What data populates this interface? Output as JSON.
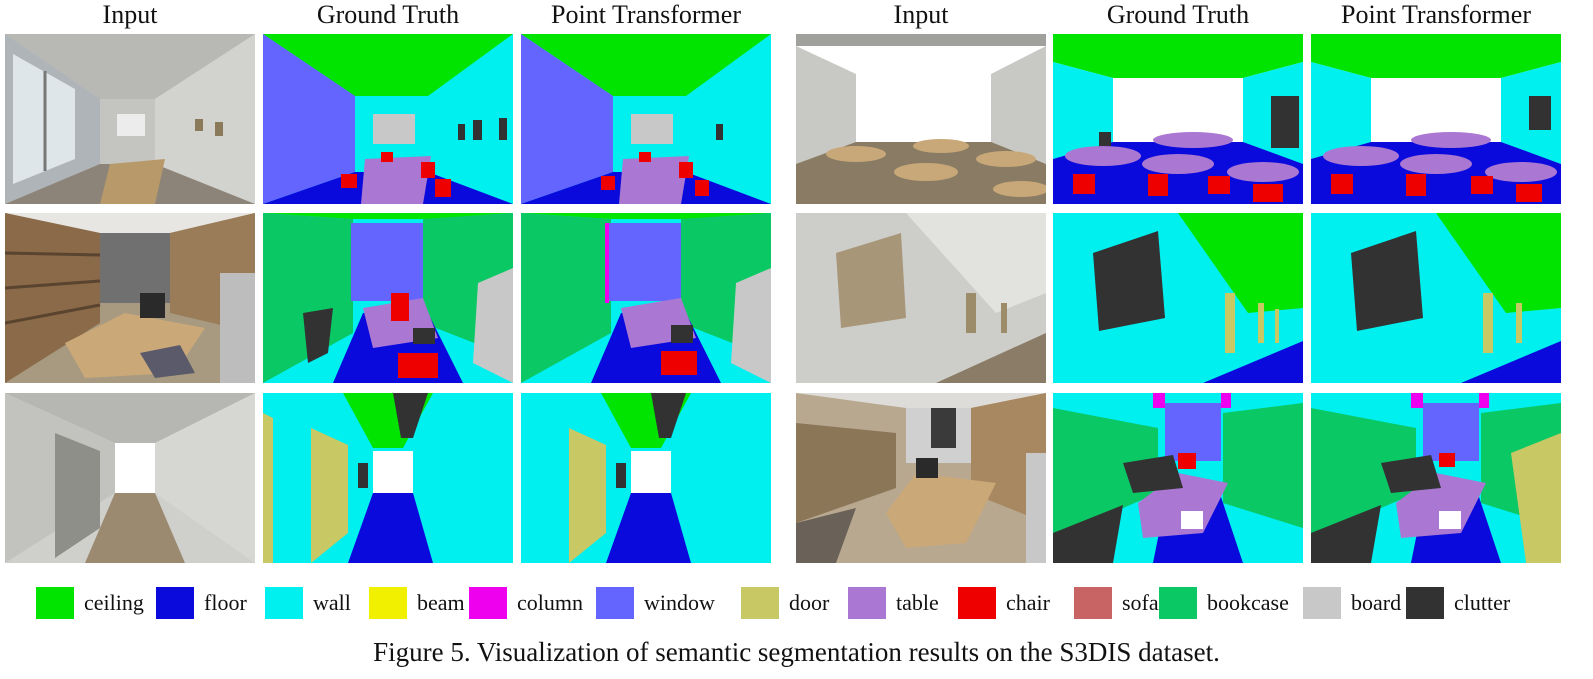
{
  "column_titles": [
    "Input",
    "Ground Truth",
    "Point Transformer",
    "Input",
    "Ground Truth",
    "Point Transformer"
  ],
  "legend": [
    {
      "label": "ceiling",
      "color": "#00e400"
    },
    {
      "label": "floor",
      "color": "#0a0adc"
    },
    {
      "label": "wall",
      "color": "#00f0f0"
    },
    {
      "label": "beam",
      "color": "#f0f000"
    },
    {
      "label": "column",
      "color": "#ee00ee"
    },
    {
      "label": "window",
      "color": "#6464ff"
    },
    {
      "label": "door",
      "color": "#c8c864"
    },
    {
      "label": "table",
      "color": "#aa78d2"
    },
    {
      "label": "chair",
      "color": "#ee0000"
    },
    {
      "label": "sofa",
      "color": "#c86464"
    },
    {
      "label": "bookcase",
      "color": "#0ac864"
    },
    {
      "label": "board",
      "color": "#c8c8c8"
    },
    {
      "label": "clutter",
      "color": "#323232"
    }
  ],
  "caption": "Figure 5. Visualization of semantic segmentation results on the S3DIS dataset."
}
